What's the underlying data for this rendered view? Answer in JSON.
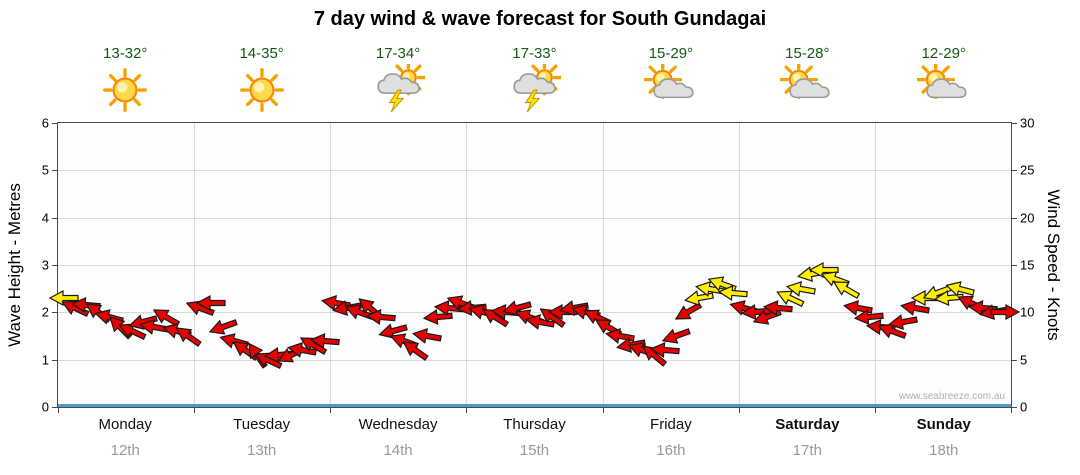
{
  "title": "7 day wind & wave forecast for South Gundagai",
  "watermark": "www.seabreeze.com.au",
  "days": [
    {
      "name": "Monday",
      "date": "12th",
      "temp": "13-32°",
      "icon": "sunny"
    },
    {
      "name": "Tuesday",
      "date": "13th",
      "temp": "14-35°",
      "icon": "sunny"
    },
    {
      "name": "Wednesday",
      "date": "14th",
      "temp": "17-34°",
      "icon": "storm"
    },
    {
      "name": "Thursday",
      "date": "15th",
      "temp": "17-33°",
      "icon": "storm"
    },
    {
      "name": "Friday",
      "date": "16th",
      "temp": "15-29°",
      "icon": "partly-cloudy"
    },
    {
      "name": "Saturday",
      "date": "17th",
      "temp": "15-28°",
      "icon": "partly-cloudy",
      "bold": true
    },
    {
      "name": "Sunday",
      "date": "18th",
      "temp": "12-29°",
      "icon": "partly-cloudy",
      "bold": true
    }
  ],
  "left_axis": {
    "label": "Wave Height - Metres",
    "ticks": [
      0,
      1,
      2,
      3,
      4,
      5,
      6
    ],
    "max": 6
  },
  "right_axis": {
    "label": "Wind Speed - Knots",
    "ticks": [
      0,
      5,
      10,
      15,
      20,
      25,
      30
    ],
    "max": 30
  },
  "colors": {
    "arrow_red": "#e60000",
    "arrow_yellow": "#ffee00",
    "temp_text": "#155915",
    "wave_line": "#4a9cc9",
    "grid": "#dadada",
    "date_text": "#999999"
  },
  "chart_data": {
    "type": "scatter",
    "subtype": "wind-direction-arrows",
    "title": "7 day wind & wave forecast for South Gundagai",
    "categories": [
      "Monday 12th",
      "Tuesday 13th",
      "Wednesday 14th",
      "Thursday 15th",
      "Friday 16th",
      "Saturday 17th",
      "Sunday 18th"
    ],
    "ylim_left_metres": [
      0,
      6
    ],
    "ylim_right_knots": [
      0,
      30
    ],
    "grid": true,
    "wave_height_m": {
      "constant": 0
    },
    "wind_arrows": {
      "interval_hours": 2,
      "point_format": [
        "wind_speed_knots",
        "direction_deg_cw_from_east",
        "color_1_yellow_0_red"
      ],
      "points": [
        [
          11.5,
          180,
          1
        ],
        [
          10.5,
          205,
          0
        ],
        [
          10.8,
          185,
          0
        ],
        [
          10,
          215,
          0
        ],
        [
          9.5,
          195,
          0
        ],
        [
          8.5,
          225,
          0
        ],
        [
          8,
          205,
          0
        ],
        [
          9,
          165,
          0
        ],
        [
          8.5,
          190,
          0
        ],
        [
          9.5,
          210,
          0
        ],
        [
          8,
          195,
          0
        ],
        [
          7.5,
          215,
          0
        ],
        [
          10.5,
          200,
          0
        ],
        [
          11,
          180,
          0
        ],
        [
          8.5,
          160,
          0
        ],
        [
          7,
          195,
          0
        ],
        [
          6,
          215,
          0
        ],
        [
          5.5,
          235,
          0
        ],
        [
          5,
          205,
          0
        ],
        [
          5.5,
          175,
          0
        ],
        [
          5.5,
          155,
          0
        ],
        [
          6,
          190,
          0
        ],
        [
          6.5,
          210,
          0
        ],
        [
          7,
          185,
          0
        ],
        [
          11,
          190,
          0
        ],
        [
          10.5,
          170,
          0
        ],
        [
          10,
          200,
          0
        ],
        [
          10.5,
          220,
          0
        ],
        [
          9.5,
          185,
          0
        ],
        [
          8,
          165,
          0
        ],
        [
          7,
          200,
          0
        ],
        [
          6,
          215,
          0
        ],
        [
          7.5,
          190,
          0
        ],
        [
          9.5,
          175,
          0
        ],
        [
          10.5,
          185,
          0
        ],
        [
          11,
          200,
          0
        ],
        [
          10.5,
          175,
          0
        ],
        [
          10,
          195,
          0
        ],
        [
          9.5,
          212,
          0
        ],
        [
          10,
          185,
          0
        ],
        [
          10.5,
          165,
          0
        ],
        [
          9.5,
          200,
          0
        ],
        [
          9,
          190,
          0
        ],
        [
          9.5,
          215,
          0
        ],
        [
          10,
          180,
          0
        ],
        [
          10.5,
          170,
          0
        ],
        [
          10,
          195,
          0
        ],
        [
          9.5,
          205,
          0
        ],
        [
          8.5,
          210,
          0
        ],
        [
          7.5,
          190,
          0
        ],
        [
          6.5,
          170,
          0
        ],
        [
          6,
          200,
          0
        ],
        [
          5.5,
          220,
          0
        ],
        [
          6,
          185,
          0
        ],
        [
          7.5,
          160,
          0
        ],
        [
          10,
          150,
          0
        ],
        [
          11.5,
          170,
          1
        ],
        [
          12.5,
          190,
          1
        ],
        [
          13,
          200,
          1
        ],
        [
          12,
          185,
          1
        ],
        [
          10.5,
          195,
          0
        ],
        [
          10,
          175,
          0
        ],
        [
          9.5,
          160,
          0
        ],
        [
          10.5,
          185,
          0
        ],
        [
          11.5,
          205,
          1
        ],
        [
          12.5,
          190,
          1
        ],
        [
          14,
          170,
          1
        ],
        [
          14.5,
          180,
          1
        ],
        [
          13.5,
          200,
          1
        ],
        [
          12.5,
          210,
          1
        ],
        [
          10.5,
          190,
          0
        ],
        [
          9.5,
          175,
          0
        ],
        [
          8.5,
          185,
          0
        ],
        [
          8,
          200,
          0
        ],
        [
          9,
          170,
          0
        ],
        [
          10.5,
          190,
          0
        ],
        [
          11.5,
          180,
          1
        ],
        [
          12,
          160,
          1
        ],
        [
          11.5,
          175,
          1
        ],
        [
          12.5,
          195,
          1
        ],
        [
          11,
          205,
          0
        ],
        [
          10.5,
          185,
          0
        ],
        [
          10,
          170,
          0
        ],
        [
          10,
          0,
          0
        ]
      ]
    }
  }
}
